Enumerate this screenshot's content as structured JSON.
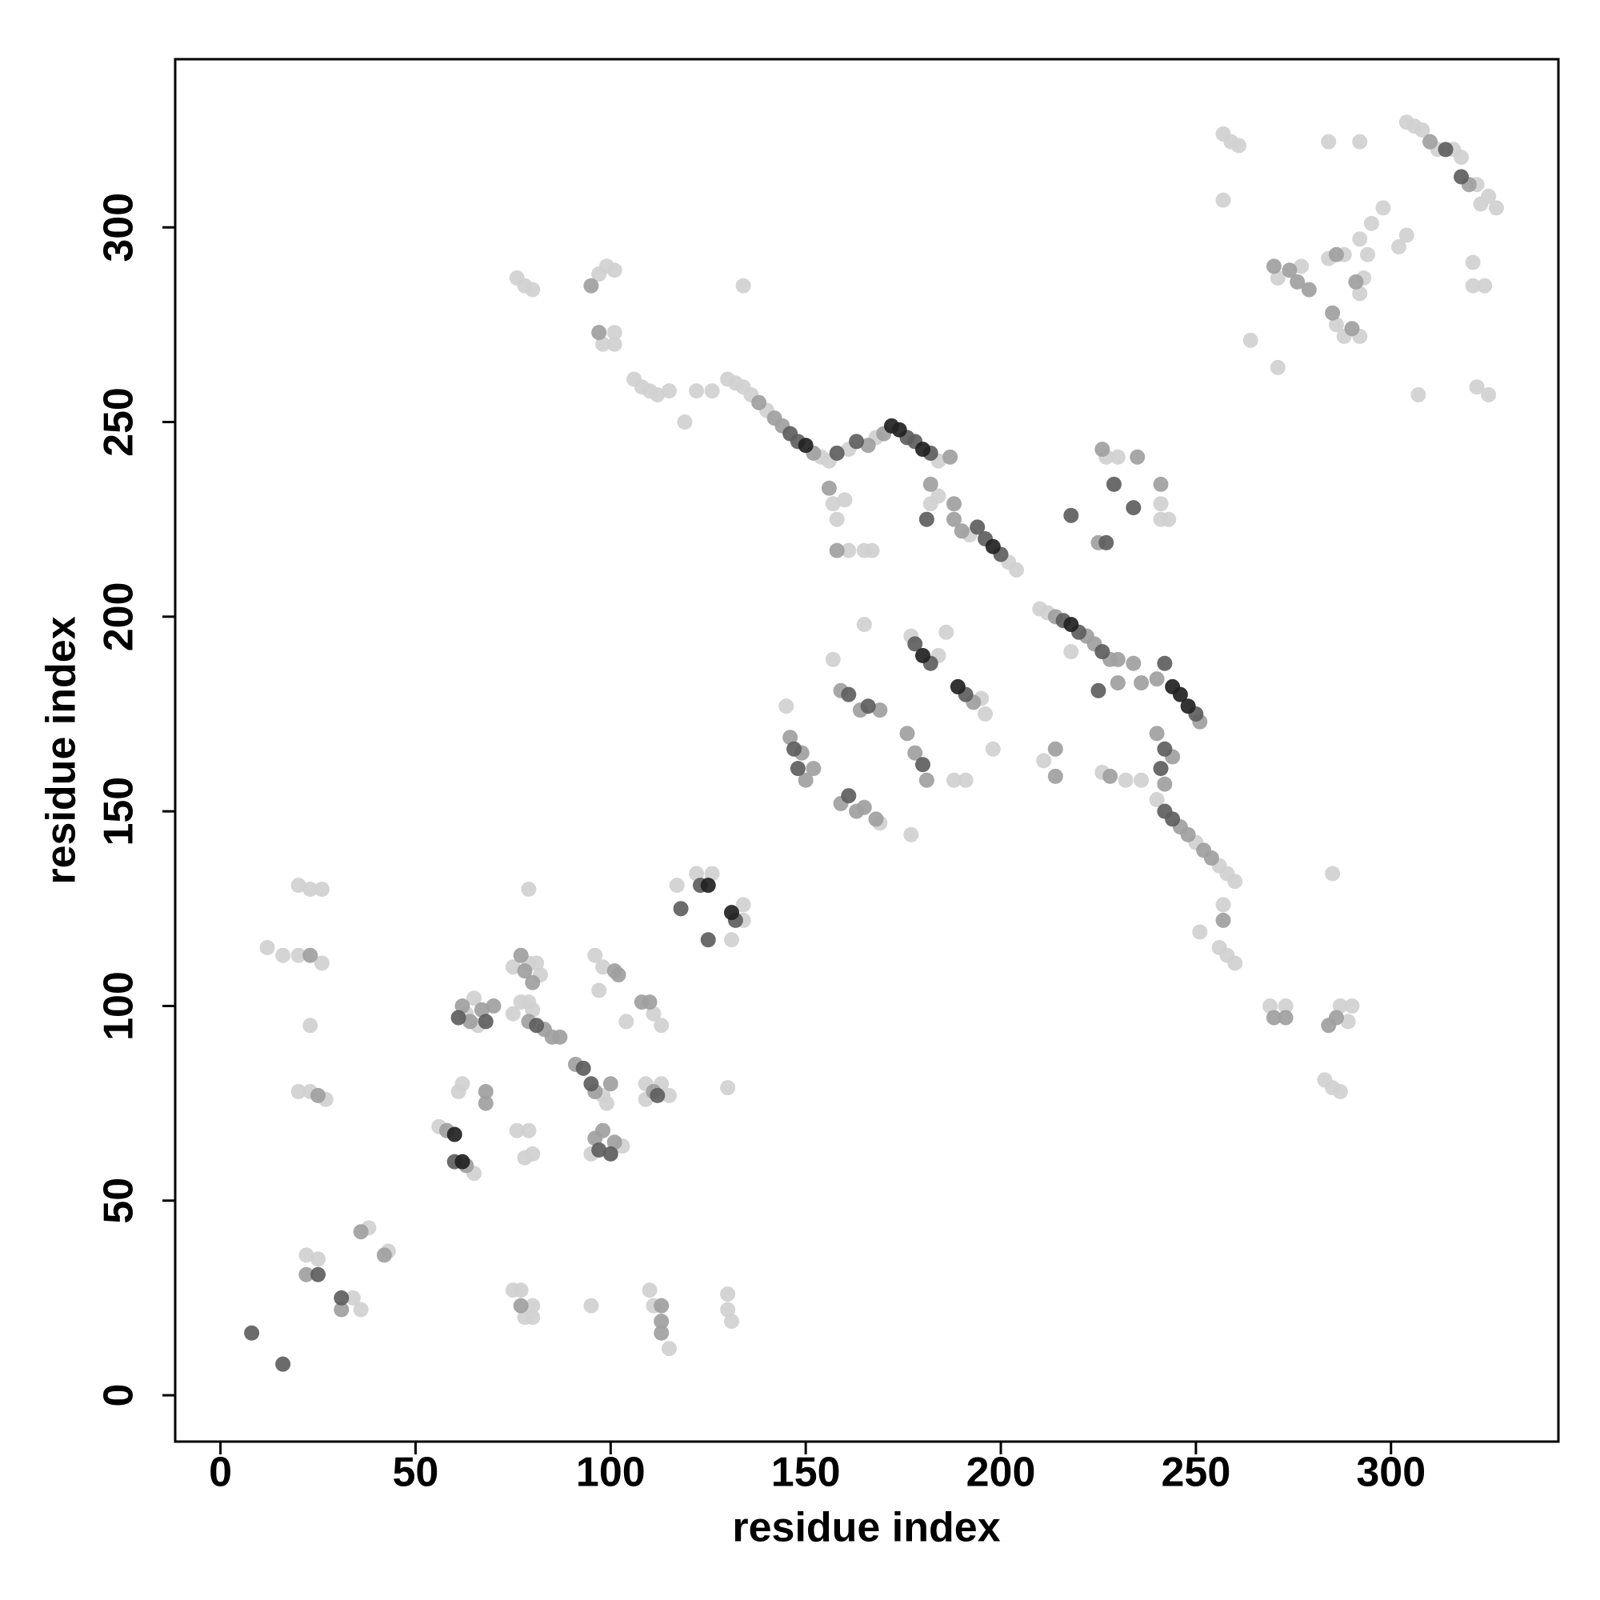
{
  "chart_data": {
    "type": "scatter",
    "x_label": "residue index",
    "y_label": "residue index",
    "xlim": [
      -11.6,
      342.9
    ],
    "ylim": [
      -11.9,
      343.2
    ],
    "xticks": [
      0,
      50,
      100,
      150,
      200,
      250,
      300
    ],
    "yticks": [
      0,
      50,
      100,
      150,
      200,
      250,
      300
    ],
    "grid": false,
    "series": [
      {
        "color": "#d0d0d0",
        "x": [
          20,
          23,
          26,
          12,
          16,
          20,
          26,
          23,
          20,
          23,
          27,
          22,
          25,
          34,
          36,
          38,
          43,
          56,
          65,
          63,
          65,
          66,
          62,
          61,
          75,
          79,
          81,
          82,
          75,
          77,
          79,
          80,
          76,
          79,
          80,
          78,
          79,
          98,
          99,
          103,
          95,
          96,
          97,
          98,
          104,
          111,
          113,
          109,
          113,
          115,
          109,
          75,
          77,
          78,
          80,
          80,
          95,
          110,
          111,
          115,
          130,
          130,
          131,
          117,
          122,
          126,
          134,
          134,
          131,
          130,
          130,
          132,
          134,
          136,
          140,
          154,
          156,
          106,
          108,
          110,
          112,
          115,
          119,
          122,
          126,
          76,
          78,
          80,
          97,
          99,
          101,
          98,
          101,
          101,
          134,
          161,
          168,
          184,
          184,
          182,
          192,
          202,
          204,
          157,
          158,
          160,
          161,
          165,
          167,
          210,
          212,
          218,
          226,
          232,
          236,
          240,
          250,
          256,
          258,
          260,
          257,
          256,
          258,
          260,
          251,
          211,
          227,
          230,
          241,
          241,
          243,
          145,
          157,
          165,
          169,
          177,
          184,
          186,
          177,
          195,
          196,
          188,
          191,
          198,
          257,
          259,
          261,
          257,
          271,
          277,
          284,
          288,
          286,
          288,
          292,
          292,
          293,
          292,
          295,
          298,
          294,
          302,
          304,
          271,
          264,
          284,
          292,
          304,
          306,
          308,
          312,
          316,
          318,
          322,
          323,
          325,
          327,
          321,
          321,
          324,
          322,
          325,
          307,
          269,
          273,
          287,
          289,
          290,
          283,
          285,
          287,
          285
        ],
        "y": [
          131,
          130,
          130,
          115,
          113,
          113,
          111,
          95,
          78,
          78,
          76,
          36,
          35,
          25,
          22,
          43,
          37,
          69,
          57,
          98,
          102,
          95,
          80,
          78,
          110,
          111,
          111,
          108,
          98,
          101,
          101,
          99,
          68,
          68,
          62,
          61,
          130,
          77,
          75,
          64,
          62,
          113,
          104,
          110,
          96,
          98,
          95,
          80,
          80,
          77,
          76,
          27,
          27,
          20,
          20,
          23,
          23,
          27,
          23,
          12,
          26,
          22,
          19,
          131,
          134,
          134,
          126,
          122,
          117,
          79,
          261,
          260,
          259,
          257,
          253,
          241,
          240,
          261,
          259,
          258,
          257,
          258,
          250,
          258,
          258,
          287,
          285,
          284,
          288,
          290,
          289,
          270,
          270,
          273,
          285,
          243,
          246,
          240,
          231,
          229,
          221,
          214,
          212,
          229,
          225,
          230,
          217,
          217,
          217,
          202,
          201,
          191,
          160,
          158,
          158,
          153,
          142,
          136,
          134,
          132,
          126,
          115,
          113,
          111,
          119,
          163,
          241,
          241,
          229,
          225,
          225,
          177,
          189,
          198,
          147,
          195,
          190,
          196,
          144,
          179,
          175,
          158,
          158,
          166,
          324,
          322,
          321,
          307,
          287,
          290,
          292,
          293,
          275,
          272,
          272,
          283,
          287,
          297,
          301,
          305,
          293,
          295,
          298,
          264,
          271,
          322,
          322,
          327,
          326,
          325,
          320,
          320,
          318,
          311,
          306,
          308,
          305,
          291,
          285,
          285,
          259,
          257,
          257,
          100,
          100,
          100,
          96,
          100,
          81,
          79,
          78,
          134
        ]
      },
      {
        "color": "#a0a0a0",
        "x": [
          23,
          25,
          22,
          31,
          36,
          42,
          58,
          63,
          62,
          64,
          67,
          70,
          68,
          68,
          77,
          78,
          80,
          79,
          83,
          85,
          87,
          91,
          96,
          100,
          96,
          98,
          101,
          101,
          102,
          108,
          110,
          111,
          77,
          113,
          113,
          113,
          138,
          142,
          144,
          152,
          95,
          97,
          166,
          170,
          187,
          182,
          188,
          188,
          190,
          156,
          158,
          214,
          222,
          224,
          228,
          230,
          230,
          234,
          236,
          240,
          251,
          240,
          244,
          242,
          228,
          246,
          248,
          252,
          254,
          257,
          214,
          214,
          226,
          235,
          225,
          241,
          146,
          149,
          150,
          152,
          159,
          164,
          169,
          159,
          163,
          165,
          168,
          176,
          178,
          181,
          193,
          270,
          274,
          276,
          279,
          286,
          285,
          290,
          291,
          310,
          320,
          270,
          273,
          284,
          286
        ],
        "y": [
          113,
          77,
          31,
          22,
          42,
          36,
          68,
          59,
          100,
          96,
          99,
          100,
          78,
          75,
          113,
          109,
          106,
          96,
          94,
          92,
          92,
          85,
          78,
          80,
          66,
          68,
          65,
          109,
          108,
          101,
          101,
          78,
          23,
          23,
          19,
          16,
          255,
          251,
          249,
          242,
          285,
          273,
          244,
          247,
          241,
          234,
          229,
          225,
          222,
          233,
          217,
          200,
          195,
          193,
          189,
          189,
          183,
          188,
          183,
          184,
          173,
          170,
          164,
          157,
          159,
          146,
          144,
          140,
          138,
          122,
          166,
          159,
          243,
          241,
          219,
          234,
          169,
          165,
          158,
          161,
          181,
          176,
          176,
          152,
          150,
          151,
          148,
          170,
          165,
          158,
          178,
          290,
          289,
          286,
          284,
          293,
          278,
          274,
          286,
          322,
          311,
          97,
          97,
          95,
          97
        ]
      },
      {
        "color": "#5e5e5e",
        "x": [
          8,
          16,
          25,
          31,
          60,
          61,
          68,
          81,
          93,
          95,
          97,
          100,
          112,
          118,
          123,
          125,
          132,
          146,
          148,
          158,
          163,
          176,
          178,
          182,
          181,
          194,
          196,
          200,
          216,
          220,
          226,
          225,
          242,
          250,
          242,
          241,
          242,
          244,
          218,
          229,
          234,
          227,
          147,
          148,
          161,
          166,
          161,
          178,
          182,
          180,
          191,
          314,
          318
        ],
        "y": [
          16,
          8,
          31,
          25,
          60,
          97,
          96,
          95,
          84,
          80,
          63,
          62,
          77,
          125,
          131,
          117,
          122,
          247,
          245,
          242,
          245,
          246,
          245,
          242,
          225,
          223,
          220,
          216,
          199,
          196,
          191,
          181,
          188,
          175,
          166,
          161,
          150,
          148,
          226,
          234,
          228,
          219,
          166,
          161,
          180,
          177,
          154,
          193,
          188,
          162,
          180,
          320,
          313
        ]
      },
      {
        "color": "#222222",
        "x": [
          60,
          62,
          125,
          131,
          150,
          172,
          174,
          180,
          198,
          218,
          244,
          246,
          248,
          180,
          189
        ],
        "y": [
          67,
          60,
          131,
          124,
          244,
          249,
          248,
          243,
          218,
          198,
          182,
          180,
          177,
          190,
          182
        ]
      }
    ]
  }
}
